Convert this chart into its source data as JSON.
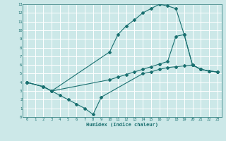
{
  "xlabel": "Humidex (Indice chaleur)",
  "bg_color": "#cce8e8",
  "grid_color": "#ffffff",
  "line_color": "#1a7070",
  "xlim": [
    -0.5,
    23.5
  ],
  "ylim": [
    0,
    13
  ],
  "xticks": [
    0,
    1,
    2,
    3,
    4,
    5,
    6,
    7,
    8,
    9,
    10,
    11,
    12,
    13,
    14,
    15,
    16,
    17,
    18,
    19,
    20,
    21,
    22,
    23
  ],
  "yticks": [
    0,
    1,
    2,
    3,
    4,
    5,
    6,
    7,
    8,
    9,
    10,
    11,
    12,
    13
  ],
  "line1_x": [
    0,
    2,
    3,
    4,
    5,
    6,
    7,
    8,
    9,
    14,
    15,
    16,
    17,
    18,
    19,
    20,
    21,
    22,
    23
  ],
  "line1_y": [
    4,
    3.5,
    3.0,
    2.5,
    2.0,
    1.5,
    1.0,
    0.3,
    2.3,
    5.0,
    5.2,
    5.5,
    5.7,
    5.8,
    5.9,
    6.0,
    5.5,
    5.3,
    5.2
  ],
  "line2_x": [
    0,
    2,
    3,
    10,
    11,
    12,
    13,
    14,
    15,
    16,
    17,
    18,
    19,
    20,
    21,
    22,
    23
  ],
  "line2_y": [
    4,
    3.5,
    3.0,
    7.5,
    9.5,
    10.5,
    11.2,
    12.0,
    12.5,
    13.0,
    12.8,
    12.5,
    9.5,
    6.0,
    5.5,
    5.3,
    5.2
  ],
  "line3_x": [
    0,
    2,
    3,
    10,
    11,
    12,
    13,
    14,
    15,
    16,
    17,
    18,
    19,
    20,
    21,
    22,
    23
  ],
  "line3_y": [
    4,
    3.5,
    3.0,
    4.3,
    4.6,
    4.9,
    5.2,
    5.5,
    5.8,
    6.1,
    6.4,
    9.3,
    9.5,
    6.0,
    5.5,
    5.3,
    5.2
  ]
}
